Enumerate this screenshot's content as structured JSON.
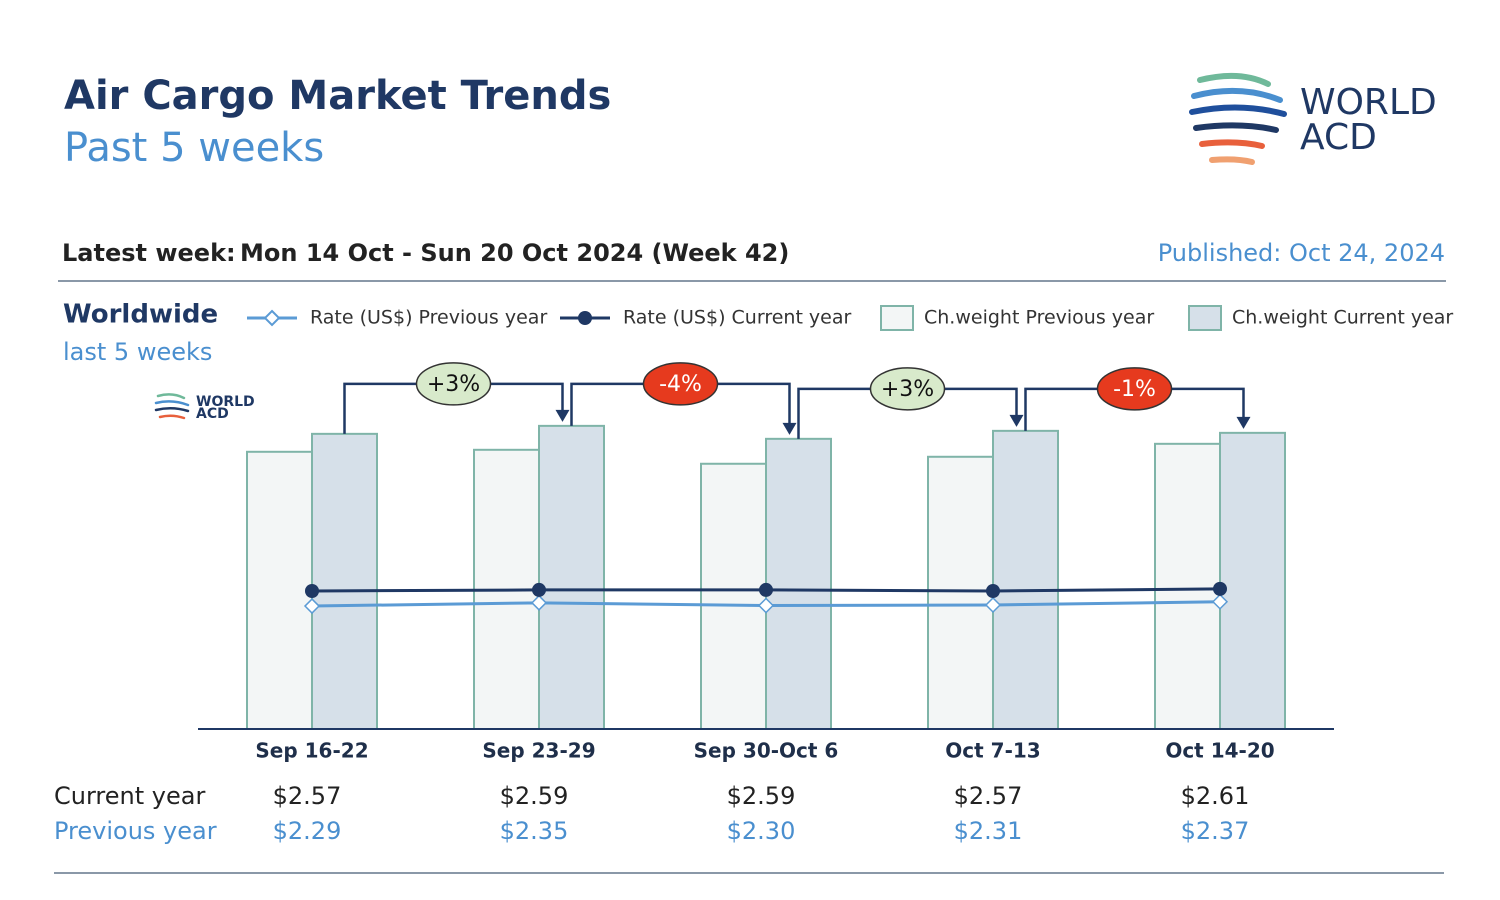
{
  "header": {
    "title": "Air Cargo Market Trends",
    "subtitle": "Past 5 weeks",
    "logo": [
      "WORLD",
      "ACD"
    ]
  },
  "info": {
    "latest_label": "Latest week:",
    "latest_value": "Mon 14 Oct - Sun 20 Oct 2024 (Week 42)",
    "published": "Published: Oct 24, 2024"
  },
  "chart_data": {
    "type": "bar",
    "title": "Worldwide",
    "subtitle": "last 5 weeks",
    "categories": [
      "Sep 16-22",
      "Sep 23-29",
      "Sep 30-Oct 6",
      "Oct 7-13",
      "Oct 14-20"
    ],
    "series": [
      {
        "name": "Rate (US$) Previous year",
        "type": "line",
        "axis": "y2",
        "color": "#5b9bd5",
        "values": [
          2.29,
          2.35,
          2.3,
          2.31,
          2.37
        ],
        "value_labels": [
          "$2.29",
          "$2.35",
          "$2.30",
          "$2.31",
          "$2.37"
        ]
      },
      {
        "name": "Rate (US$) Current year",
        "type": "line",
        "axis": "y2",
        "color": "#1f3864",
        "values": [
          2.57,
          2.59,
          2.59,
          2.57,
          2.61
        ],
        "value_labels": [
          "$2.57",
          "$2.59",
          "$2.59",
          "$2.57",
          "$2.61"
        ]
      },
      {
        "name": "Ch.weight Previous year",
        "type": "bar",
        "color": "#f3f6f6",
        "values": [
          278,
          280,
          266,
          273,
          286
        ]
      },
      {
        "name": "Ch.weight Current year",
        "type": "bar",
        "color": "#d6e0e9",
        "values": [
          296,
          304,
          291,
          299,
          297
        ]
      }
    ],
    "ylim": [
      0,
      350
    ],
    "y2lim": [
      0,
      6.5
    ],
    "changes": [
      "+3%",
      "-4%",
      "+3%",
      "-1%"
    ],
    "table_rows": [
      "Current year",
      "Previous year"
    ]
  }
}
